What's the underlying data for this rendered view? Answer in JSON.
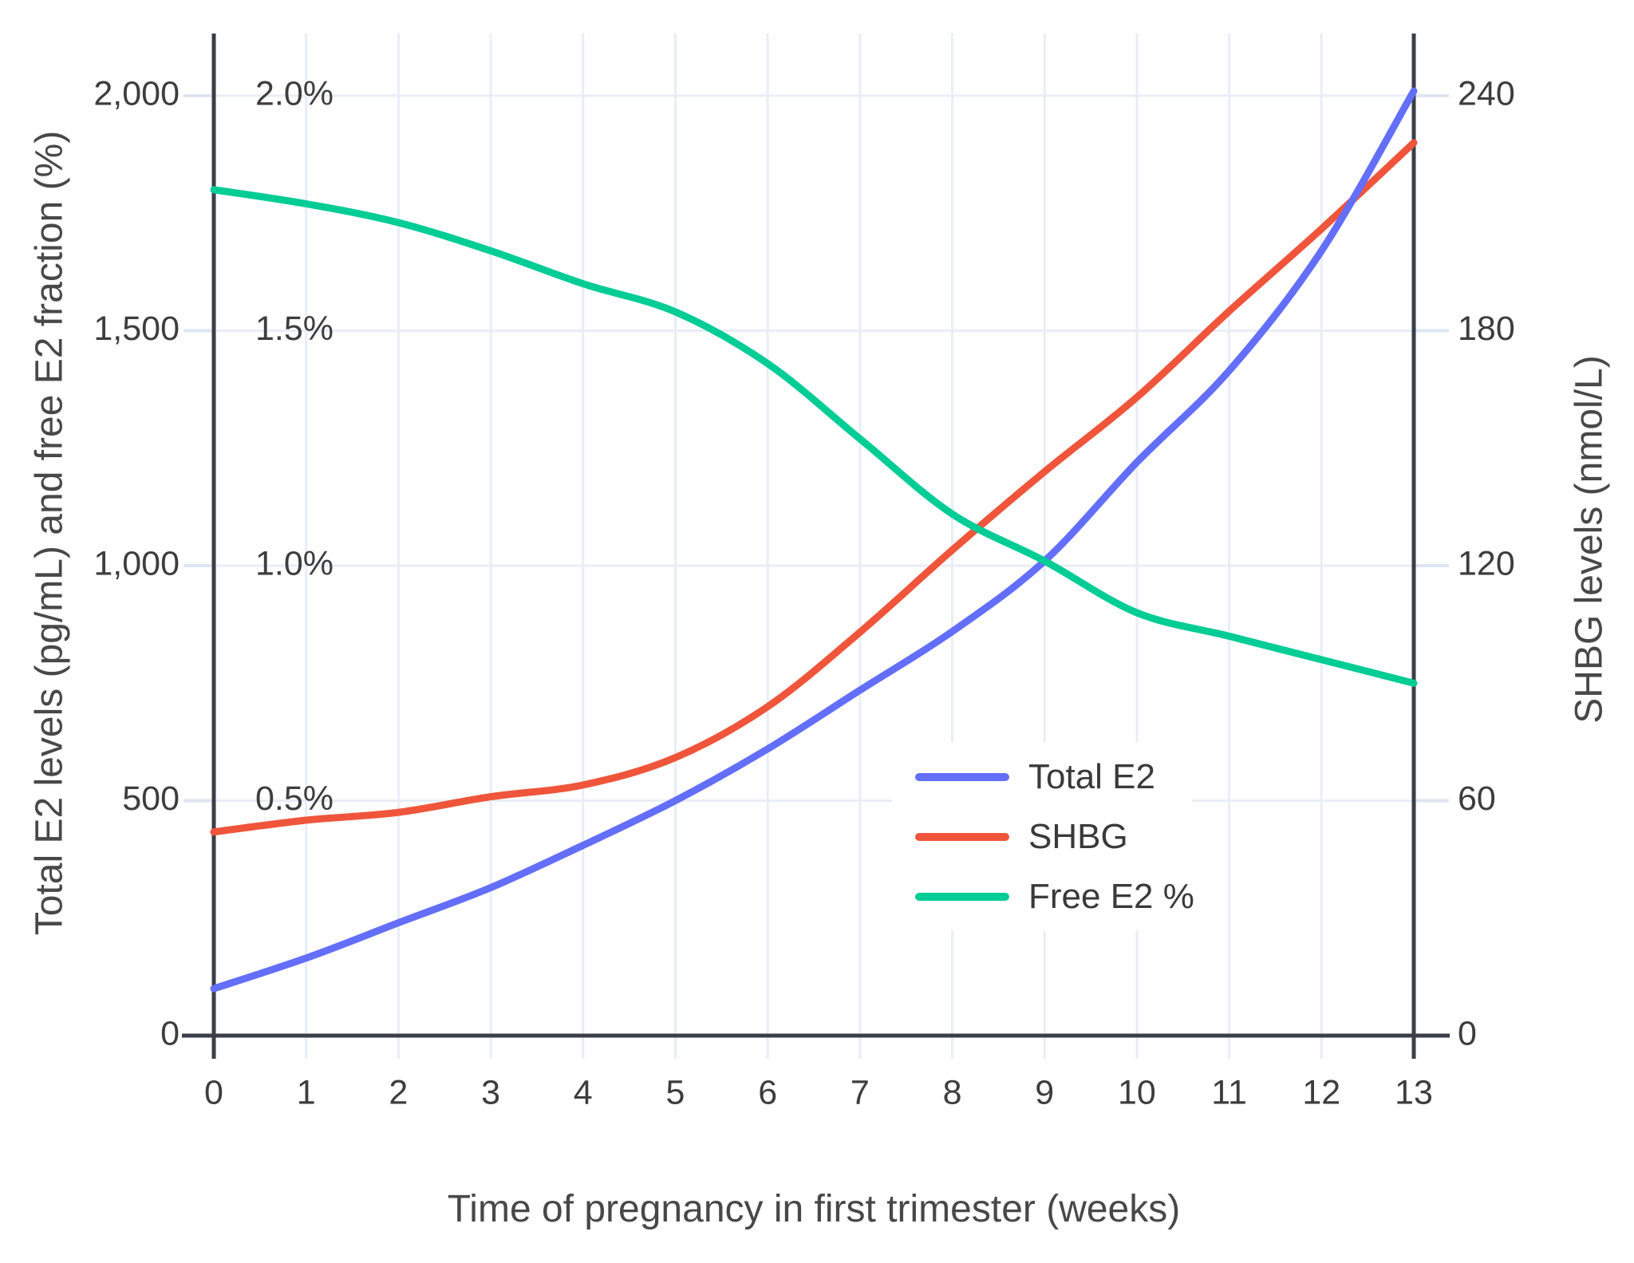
{
  "chart_data": {
    "type": "line",
    "title": "",
    "grid": true,
    "legend_position": "inside-right-middle",
    "x": [
      0,
      1,
      2,
      3,
      4,
      5,
      6,
      7,
      8,
      9,
      10,
      11,
      12,
      13
    ],
    "x_axis": {
      "title": "Time of pregnancy in first trimester (weeks)",
      "tick_labels": [
        "0",
        "1",
        "2",
        "3",
        "4",
        "5",
        "6",
        "7",
        "8",
        "9",
        "10",
        "11",
        "12",
        "13"
      ],
      "range": [
        0,
        13
      ]
    },
    "y_left_axis": {
      "title": "Total E2 levels (pg/mL) and free E2 fraction (%)",
      "tick_labels": [
        "0",
        "500",
        "1,000",
        "1,500",
        "2,000"
      ],
      "tick_values": [
        0,
        500,
        1000,
        1500,
        2000
      ],
      "range": [
        0,
        2140
      ]
    },
    "y_left_inner_pct_ticks": {
      "tick_labels": [
        "0.5%",
        "1.0%",
        "1.5%",
        "2.0%"
      ],
      "tick_values": [
        0.5,
        1.0,
        1.5,
        2.0
      ]
    },
    "y_right_axis": {
      "title": "SHBG levels (nmol/L)",
      "tick_labels": [
        "0",
        "60",
        "120",
        "180",
        "240"
      ],
      "tick_values": [
        0,
        60,
        120,
        180,
        240
      ],
      "range": [
        0,
        256.8
      ]
    },
    "series": [
      {
        "name": "Total E2",
        "axis": "left",
        "unit": "pg/mL",
        "color": "#636EFA",
        "values": [
          100,
          165,
          240,
          315,
          405,
          500,
          610,
          735,
          860,
          1010,
          1220,
          1415,
          1670,
          2010
        ]
      },
      {
        "name": "SHBG",
        "axis": "right",
        "unit": "nmol/L",
        "color": "#EF553B",
        "values": [
          52,
          55,
          57,
          61,
          64,
          71,
          84,
          103,
          124,
          144,
          163,
          185,
          206,
          228
        ]
      },
      {
        "name": "Free E2 %",
        "axis": "left-percent",
        "unit": "%",
        "color": "#00CC96",
        "values": [
          1.8,
          1.77,
          1.73,
          1.67,
          1.6,
          1.54,
          1.43,
          1.27,
          1.11,
          1.01,
          0.9,
          0.85,
          0.8,
          0.75
        ]
      }
    ]
  },
  "legend": {
    "items": [
      {
        "label": "Total E2",
        "color": "#636EFA"
      },
      {
        "label": "SHBG",
        "color": "#EF553B"
      },
      {
        "label": "Free E2 %",
        "color": "#00CC96"
      }
    ]
  },
  "colors": {
    "background": "#ffffff",
    "gridline": "#E8EDF6",
    "tick_dash": "#DDE5F1",
    "axis_line": "#3A3F47",
    "tick_text": "#3D3D3D",
    "title_text": "#484848",
    "legend_text": "#3A3A3A"
  }
}
